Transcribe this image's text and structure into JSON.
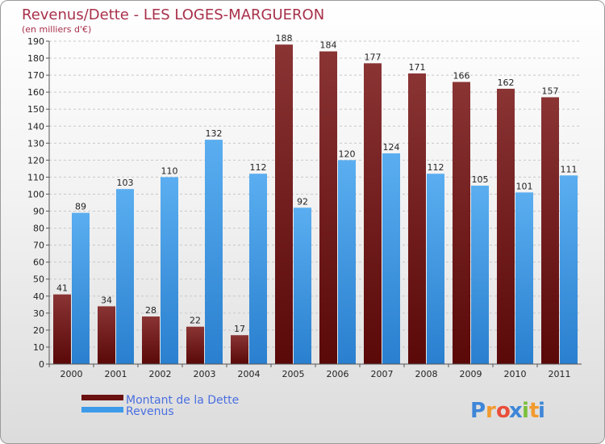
{
  "chart_data": {
    "type": "bar",
    "title": "Revenus/Dette - LES LOGES-MARGUERON",
    "subtitle": "(en milliers d'€)",
    "categories": [
      "2000",
      "2001",
      "2002",
      "2003",
      "2004",
      "2005",
      "2006",
      "2007",
      "2008",
      "2009",
      "2010",
      "2011"
    ],
    "series": [
      {
        "name": "Montant de la Dette",
        "values": [
          41,
          34,
          28,
          22,
          17,
          188,
          184,
          177,
          171,
          166,
          162,
          157
        ],
        "color": "#7a1c1c"
      },
      {
        "name": "Revenus",
        "values": [
          89,
          103,
          110,
          132,
          112,
          92,
          120,
          124,
          112,
          105,
          101,
          111
        ],
        "color": "#3d9be9"
      }
    ],
    "ylim": [
      0,
      190
    ],
    "ytick_step": 10,
    "grid": true,
    "legend_position": "bottom-left"
  },
  "logo": {
    "letters": [
      "P",
      "r",
      "o",
      "x",
      "i",
      "t",
      "i"
    ],
    "colors": [
      "#3e86d8",
      "#f29a2e",
      "#e94d3b",
      "#3e86d8",
      "#7bbf3a",
      "#f29a2e",
      "#3e86d8"
    ]
  }
}
